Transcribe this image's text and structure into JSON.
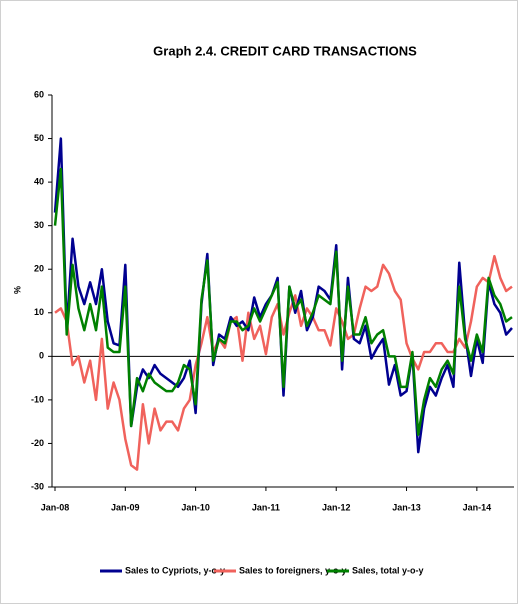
{
  "chart_data": {
    "type": "line",
    "title": "Graph 2.4. CREDIT CARD TRANSACTIONS",
    "y_label": "%",
    "categories": [
      "Jan-08",
      null,
      null,
      null,
      null,
      null,
      null,
      null,
      null,
      null,
      null,
      null,
      "Jan-09",
      null,
      null,
      null,
      null,
      null,
      null,
      null,
      null,
      null,
      null,
      null,
      "Jan-10",
      null,
      null,
      null,
      null,
      null,
      null,
      null,
      null,
      null,
      null,
      null,
      "Jan-11",
      null,
      null,
      null,
      null,
      null,
      null,
      null,
      null,
      null,
      null,
      null,
      "Jan-12",
      null,
      null,
      null,
      null,
      null,
      null,
      null,
      null,
      null,
      null,
      null,
      "Jan-13",
      null,
      null,
      null,
      null,
      null,
      null,
      null,
      null,
      null,
      null,
      null,
      "Jan-14",
      null,
      null,
      null,
      null,
      null,
      null
    ],
    "ylim": [
      -30,
      60
    ],
    "yticks": [
      -30,
      -20,
      -10,
      0,
      10,
      20,
      30,
      40,
      50,
      60
    ],
    "legend": "bottom",
    "series": [
      {
        "name": "Sales to Cypriots, y-o-y",
        "color": "#000090",
        "values": [
          33,
          50,
          6,
          27,
          16,
          12,
          17,
          12,
          20,
          8,
          3,
          2.5,
          21,
          -16,
          -7,
          -3,
          -5,
          -2,
          -4,
          -5,
          -6,
          -7,
          -5,
          -1,
          -13,
          12,
          23.5,
          -2,
          5,
          4,
          9,
          7,
          8,
          6,
          13.5,
          9,
          12,
          14,
          18,
          -9,
          16,
          10,
          15,
          6,
          9,
          16,
          15,
          13,
          25.5,
          -3,
          18,
          4,
          3,
          7,
          -0.5,
          2,
          4,
          -6.5,
          -2,
          -9,
          -8,
          0.5,
          -22,
          -12,
          -7,
          -9,
          -5,
          -2,
          -7,
          21.5,
          5,
          -4.5,
          4,
          -1.5,
          17,
          12,
          10,
          5,
          6.5
        ]
      },
      {
        "name": "Sales to foreigners, y-o-y",
        "color": "#f0625c",
        "values": [
          10,
          11,
          8,
          -2,
          0,
          -6,
          -1,
          -10,
          4,
          -12,
          -6,
          -10,
          -19,
          -25,
          -26,
          -11,
          -20,
          -12,
          -17,
          -15,
          -15,
          -17,
          -12,
          -10,
          -2,
          3,
          9,
          1,
          4,
          2,
          8,
          9,
          -1,
          10,
          4,
          7,
          0.5,
          9,
          12,
          5,
          10,
          14,
          7,
          11,
          9,
          6,
          6,
          2.5,
          11,
          8,
          4,
          5,
          11,
          16,
          15,
          16,
          21,
          19,
          15,
          13,
          3,
          -0.5,
          -3,
          1,
          1,
          3,
          3,
          1,
          1,
          4,
          2,
          8,
          16,
          18,
          17,
          23,
          18,
          15,
          16
        ]
      },
      {
        "name": "Sales, total y-o-y",
        "color": "#008000",
        "values": [
          30,
          43,
          5,
          21,
          11,
          6,
          12,
          6,
          16,
          2,
          1,
          1,
          16,
          -16,
          -5,
          -8,
          -4,
          -6,
          -7,
          -8,
          -8,
          -6,
          -2,
          -3,
          -11,
          13,
          22,
          -1,
          4,
          3,
          8,
          8,
          6,
          7,
          11,
          8,
          11,
          14,
          17,
          -7,
          16,
          11,
          13,
          7,
          10,
          14,
          13,
          12,
          24,
          -1,
          16,
          5,
          5,
          9,
          3,
          5,
          6,
          0,
          0,
          -7,
          -7,
          1,
          -18,
          -10,
          -5,
          -7,
          -3,
          -1,
          -4,
          16,
          4,
          -1,
          5,
          1,
          18,
          14,
          12,
          8,
          9
        ]
      }
    ]
  }
}
